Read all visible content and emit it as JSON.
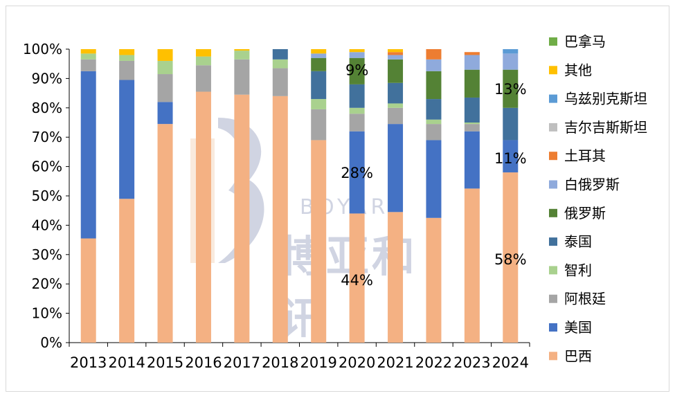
{
  "chart_data": {
    "type": "bar",
    "stacked": true,
    "percent": true,
    "categories": [
      "2013",
      "2014",
      "2015",
      "2016",
      "2017",
      "2018",
      "2019",
      "2020",
      "2021",
      "2022",
      "2023",
      "2024"
    ],
    "ylim": [
      0,
      100
    ],
    "yticks": [
      "0%",
      "10%",
      "20%",
      "30%",
      "40%",
      "50%",
      "60%",
      "70%",
      "80%",
      "90%",
      "100%"
    ],
    "series": [
      {
        "name": "巴西",
        "color": "#F4B183",
        "values": [
          35.5,
          49,
          74.5,
          85.5,
          84.5,
          84,
          69,
          44,
          44.5,
          42.5,
          52.5,
          58
        ]
      },
      {
        "name": "美国",
        "color": "#4472C4",
        "values": [
          57,
          40.5,
          7.5,
          0,
          0,
          0,
          0,
          28,
          30,
          26.5,
          19.5,
          11
        ]
      },
      {
        "name": "阿根廷",
        "color": "#A5A5A5",
        "values": [
          4,
          6.5,
          9.5,
          9,
          12,
          9.5,
          10.5,
          6,
          5.5,
          5.5,
          2.5,
          0
        ]
      },
      {
        "name": "智利",
        "color": "#A9D18E",
        "values": [
          2,
          2,
          4.5,
          3,
          3,
          3,
          3.5,
          2,
          1.5,
          1.5,
          0.5,
          0
        ]
      },
      {
        "name": "泰国",
        "color": "#41719C",
        "values": [
          0,
          0,
          0,
          0,
          0,
          3.5,
          9.5,
          8,
          7,
          7,
          8.5,
          11
        ]
      },
      {
        "name": "俄罗斯",
        "color": "#548235",
        "values": [
          0,
          0,
          0,
          0,
          0,
          0,
          4.5,
          9,
          8,
          9.5,
          9.5,
          13
        ]
      },
      {
        "name": "白俄罗斯",
        "color": "#8FAADC",
        "values": [
          0,
          0,
          0,
          0,
          0,
          0,
          1.5,
          2,
          1.5,
          4,
          5,
          5.5
        ]
      },
      {
        "name": "土耳其",
        "color": "#ED7D31",
        "values": [
          0,
          0,
          0,
          0,
          0,
          0,
          0,
          0,
          1,
          3.5,
          1,
          0
        ]
      },
      {
        "name": "吉尔吉斯斯坦",
        "color": "#BFBFBF",
        "values": [
          0,
          0,
          0,
          0,
          0,
          0,
          0,
          0,
          0,
          0,
          0,
          0
        ]
      },
      {
        "name": "乌兹别克斯坦",
        "color": "#5B9BD5",
        "values": [
          0,
          0,
          0,
          0,
          0,
          0,
          0,
          0,
          0,
          0,
          0,
          1.5
        ]
      },
      {
        "name": "其他",
        "color": "#FFC000",
        "values": [
          1.5,
          2,
          4,
          2.5,
          0.5,
          0,
          1.5,
          1,
          1,
          0,
          0,
          0
        ]
      },
      {
        "name": "巴拿马",
        "color": "#70AD47",
        "values": [
          0,
          0,
          0,
          0,
          0,
          0,
          0,
          0,
          0,
          0,
          0,
          0
        ]
      }
    ],
    "annotations": [
      {
        "text": "9%",
        "category": "2020",
        "y": 93
      },
      {
        "text": "28%",
        "category": "2020",
        "y": 58
      },
      {
        "text": "44%",
        "category": "2020",
        "y": 21.5
      },
      {
        "text": "13%",
        "category": "2024",
        "y": 86.5
      },
      {
        "text": "11%",
        "category": "2024",
        "y": 63
      },
      {
        "text": "58%",
        "category": "2024",
        "y": 28.5
      }
    ],
    "legend_order": [
      "巴拿马",
      "其他",
      "乌兹别克斯坦",
      "吉尔吉斯斯坦",
      "土耳其",
      "白俄罗斯",
      "俄罗斯",
      "泰国",
      "智利",
      "阿根廷",
      "美国",
      "巴西"
    ],
    "legend_position": "right",
    "grid": false
  },
  "watermark": {
    "brand": "BOYAR",
    "text": "博亚和讯"
  }
}
